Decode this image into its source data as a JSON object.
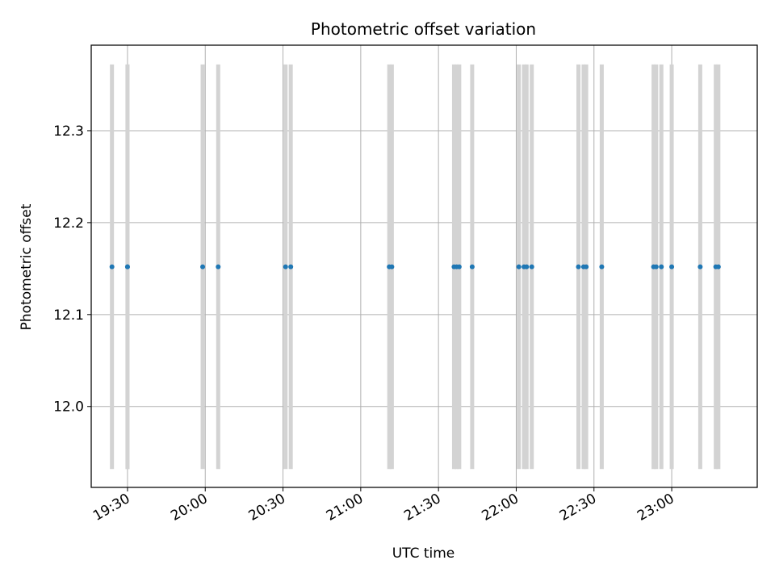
{
  "chart_data": {
    "type": "scatter",
    "title": "Photometric offset variation",
    "xlabel": "UTC time",
    "ylabel": "Photometric offset",
    "x_ticks": [
      "19:30",
      "20:00",
      "20:30",
      "21:00",
      "21:30",
      "22:00",
      "22:30",
      "23:00"
    ],
    "y_ticks": [
      "12.0",
      "12.1",
      "12.2",
      "12.3"
    ],
    "xlim": [
      "19:16",
      "23:33"
    ],
    "ylim": [
      11.912,
      12.393
    ],
    "grid": true,
    "colors": {
      "points": "#1f77b4",
      "bars": "#d3d3d3",
      "grid": "#b0b0b0"
    },
    "series": [
      {
        "values": [
          {
            "time": "19:24",
            "y": 12.152
          },
          {
            "time": "19:30",
            "y": 12.152
          },
          {
            "time": "19:30",
            "y": 12.152
          },
          {
            "time": "19:59",
            "y": 12.152
          },
          {
            "time": "20:05",
            "y": 12.152
          },
          {
            "time": "20:31",
            "y": 12.152
          },
          {
            "time": "20:33",
            "y": 12.152
          },
          {
            "time": "21:11",
            "y": 12.152
          },
          {
            "time": "21:12",
            "y": 12.152
          },
          {
            "time": "21:36",
            "y": 12.152
          },
          {
            "time": "21:37",
            "y": 12.152
          },
          {
            "time": "21:38",
            "y": 12.152
          },
          {
            "time": "21:43",
            "y": 12.152
          },
          {
            "time": "22:01",
            "y": 12.152
          },
          {
            "time": "22:03",
            "y": 12.152
          },
          {
            "time": "22:04",
            "y": 12.152
          },
          {
            "time": "22:06",
            "y": 12.152
          },
          {
            "time": "22:24",
            "y": 12.152
          },
          {
            "time": "22:26",
            "y": 12.152
          },
          {
            "time": "22:27",
            "y": 12.152
          },
          {
            "time": "22:33",
            "y": 12.152
          },
          {
            "time": "22:53",
            "y": 12.152
          },
          {
            "time": "22:54",
            "y": 12.152
          },
          {
            "time": "22:56",
            "y": 12.152
          },
          {
            "time": "23:00",
            "y": 12.152
          },
          {
            "time": "23:11",
            "y": 12.152
          },
          {
            "time": "23:17",
            "y": 12.152
          },
          {
            "time": "23:18",
            "y": 12.152
          }
        ],
        "error_low": 11.932,
        "error_high": 12.372
      }
    ]
  }
}
